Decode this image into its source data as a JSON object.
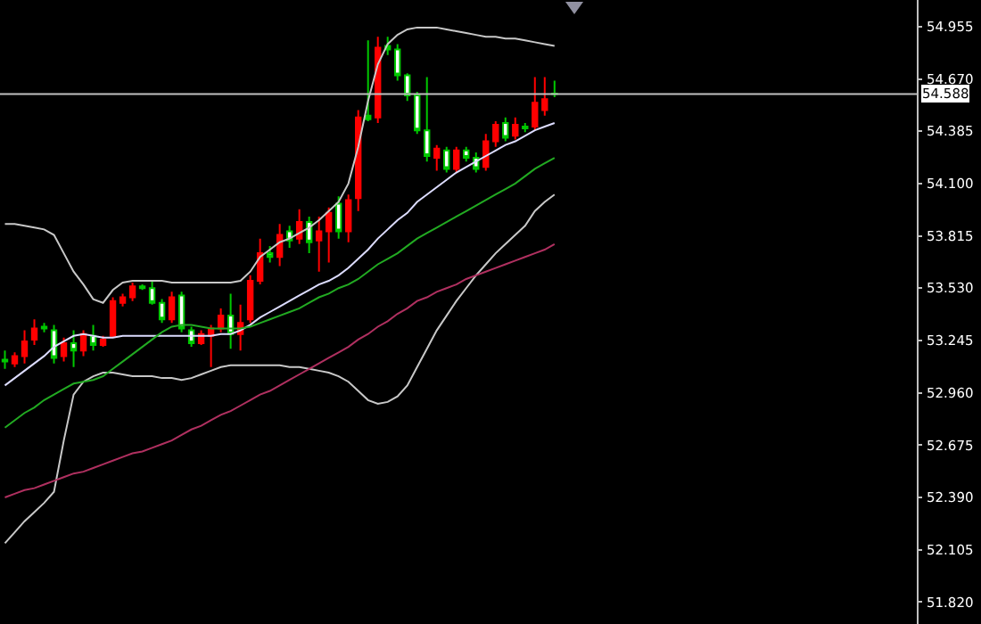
{
  "chart_data": {
    "type": "candlestick",
    "categories": [
      null,
      null,
      null,
      null,
      null,
      null,
      null,
      null,
      null,
      null,
      null,
      null,
      null,
      null,
      null,
      null,
      null,
      null,
      null,
      null,
      null,
      null,
      null,
      null,
      null,
      null,
      null,
      null,
      null,
      null,
      null,
      null,
      null,
      null,
      null,
      null,
      null,
      null,
      null,
      null,
      null,
      null,
      null,
      null,
      null,
      null,
      null,
      null,
      null,
      null,
      null,
      null,
      null,
      null,
      null,
      null,
      null
    ],
    "ohlc": [
      [
        53.14,
        53.19,
        53.09,
        53.13
      ],
      [
        53.12,
        53.18,
        53.1,
        53.16
      ],
      [
        53.16,
        53.3,
        53.12,
        53.24
      ],
      [
        53.25,
        53.36,
        53.22,
        53.31
      ],
      [
        53.32,
        53.34,
        53.29,
        53.31
      ],
      [
        53.3,
        53.33,
        53.12,
        53.15
      ],
      [
        53.16,
        53.26,
        53.13,
        53.23
      ],
      [
        53.23,
        53.3,
        53.1,
        53.19
      ],
      [
        53.19,
        53.3,
        53.16,
        53.28
      ],
      [
        53.27,
        53.33,
        53.19,
        53.22
      ],
      [
        53.22,
        53.27,
        53.21,
        53.25
      ],
      [
        53.27,
        53.48,
        53.26,
        53.46
      ],
      [
        53.45,
        53.5,
        53.43,
        53.48
      ],
      [
        53.48,
        53.56,
        53.46,
        53.54
      ],
      [
        53.54,
        53.55,
        53.52,
        53.53
      ],
      [
        53.53,
        53.57,
        53.44,
        53.45
      ],
      [
        53.45,
        53.47,
        53.34,
        53.36
      ],
      [
        53.36,
        53.51,
        53.34,
        53.48
      ],
      [
        53.49,
        53.51,
        53.29,
        53.31
      ],
      [
        53.3,
        53.32,
        53.21,
        53.23
      ],
      [
        53.23,
        53.3,
        53.22,
        53.28
      ],
      [
        53.27,
        53.33,
        53.1,
        53.31
      ],
      [
        53.31,
        53.42,
        53.29,
        53.38
      ],
      [
        53.38,
        53.5,
        53.2,
        53.28
      ],
      [
        53.28,
        53.44,
        53.19,
        53.34
      ],
      [
        53.36,
        53.6,
        53.34,
        53.57
      ],
      [
        53.57,
        53.8,
        53.55,
        53.72
      ],
      [
        53.72,
        53.76,
        53.67,
        53.7
      ],
      [
        53.7,
        53.88,
        53.65,
        53.82
      ],
      [
        53.84,
        53.87,
        53.75,
        53.79
      ],
      [
        53.8,
        53.96,
        53.77,
        53.89
      ],
      [
        53.89,
        53.92,
        53.72,
        53.78
      ],
      [
        53.79,
        53.92,
        53.62,
        53.84
      ],
      [
        53.84,
        53.97,
        53.67,
        53.94
      ],
      [
        53.99,
        54.03,
        53.8,
        53.84
      ],
      [
        53.84,
        54.04,
        53.78,
        54.01
      ],
      [
        54.02,
        54.5,
        53.95,
        54.46
      ],
      [
        54.47,
        54.88,
        54.44,
        54.45
      ],
      [
        54.46,
        54.9,
        54.43,
        54.84
      ],
      [
        54.85,
        54.9,
        54.8,
        54.83
      ],
      [
        54.83,
        54.86,
        54.66,
        54.69
      ],
      [
        54.69,
        54.7,
        54.55,
        54.58
      ],
      [
        54.58,
        54.6,
        54.37,
        54.39
      ],
      [
        54.39,
        54.68,
        54.22,
        54.25
      ],
      [
        54.24,
        54.31,
        54.17,
        54.29
      ],
      [
        54.28,
        54.3,
        54.16,
        54.18
      ],
      [
        54.18,
        54.3,
        54.16,
        54.28
      ],
      [
        54.28,
        54.3,
        54.22,
        54.24
      ],
      [
        54.24,
        54.27,
        54.16,
        54.18
      ],
      [
        54.19,
        54.37,
        54.17,
        54.33
      ],
      [
        54.33,
        54.44,
        54.3,
        54.42
      ],
      [
        54.43,
        54.46,
        54.33,
        54.35
      ],
      [
        54.36,
        54.46,
        54.34,
        54.42
      ],
      [
        54.41,
        54.43,
        54.38,
        54.4
      ],
      [
        54.41,
        54.68,
        54.39,
        54.54
      ],
      [
        54.5,
        54.68,
        54.47,
        54.56
      ],
      [
        54.59,
        54.66,
        54.57,
        54.588
      ]
    ],
    "series": [
      {
        "type": "line",
        "color": "#c8c8c8",
        "values": [
          53.88,
          53.88,
          53.87,
          53.86,
          53.85,
          53.82,
          53.72,
          53.62,
          53.55,
          53.47,
          53.45,
          53.52,
          53.56,
          53.57,
          53.57,
          53.57,
          53.57,
          53.56,
          53.56,
          53.56,
          53.56,
          53.56,
          53.56,
          53.56,
          53.57,
          53.62,
          53.7,
          53.74,
          53.78,
          53.8,
          53.83,
          53.86,
          53.9,
          53.95,
          54.0,
          54.1,
          54.3,
          54.55,
          54.75,
          54.86,
          54.91,
          54.94,
          54.95,
          54.95,
          54.95,
          54.94,
          54.93,
          54.92,
          54.91,
          54.9,
          54.9,
          54.89,
          54.89,
          54.88,
          54.87,
          54.86,
          54.85
        ]
      },
      {
        "type": "line",
        "color": "#c8c8c8",
        "values": [
          52.14,
          52.2,
          52.26,
          52.31,
          52.36,
          52.42,
          52.7,
          52.95,
          53.02,
          53.05,
          53.07,
          53.07,
          53.06,
          53.05,
          53.05,
          53.05,
          53.04,
          53.04,
          53.03,
          53.04,
          53.06,
          53.08,
          53.1,
          53.11,
          53.11,
          53.11,
          53.11,
          53.11,
          53.11,
          53.1,
          53.1,
          53.09,
          53.08,
          53.07,
          53.05,
          53.02,
          52.97,
          52.92,
          52.9,
          52.91,
          52.94,
          53.0,
          53.1,
          53.2,
          53.3,
          53.38,
          53.46,
          53.53,
          53.6,
          53.66,
          53.72,
          53.77,
          53.82,
          53.87,
          53.95,
          54.0,
          54.04
        ]
      },
      {
        "type": "line",
        "color": "#dcdcff",
        "values": [
          53.0,
          53.04,
          53.08,
          53.12,
          53.16,
          53.21,
          53.24,
          53.27,
          53.28,
          53.27,
          53.26,
          53.26,
          53.27,
          53.27,
          53.27,
          53.27,
          53.27,
          53.27,
          53.27,
          53.27,
          53.27,
          53.27,
          53.28,
          53.28,
          53.3,
          53.33,
          53.37,
          53.4,
          53.43,
          53.46,
          53.49,
          53.52,
          53.55,
          53.57,
          53.6,
          53.64,
          53.69,
          53.74,
          53.8,
          53.85,
          53.9,
          53.94,
          54.0,
          54.04,
          54.08,
          54.12,
          54.16,
          54.19,
          54.22,
          54.25,
          54.28,
          54.31,
          54.33,
          54.36,
          54.39,
          54.41,
          54.43
        ]
      },
      {
        "type": "line",
        "color": "#22aa22",
        "values": [
          52.77,
          52.81,
          52.85,
          52.88,
          52.92,
          52.95,
          52.98,
          53.01,
          53.02,
          53.03,
          53.05,
          53.09,
          53.13,
          53.17,
          53.21,
          53.25,
          53.29,
          53.32,
          53.33,
          53.33,
          53.32,
          53.31,
          53.31,
          53.31,
          53.31,
          53.32,
          53.34,
          53.36,
          53.38,
          53.4,
          53.42,
          53.45,
          53.48,
          53.5,
          53.53,
          53.55,
          53.58,
          53.62,
          53.66,
          53.69,
          53.72,
          53.76,
          53.8,
          53.83,
          53.86,
          53.89,
          53.92,
          53.95,
          53.98,
          54.01,
          54.04,
          54.07,
          54.1,
          54.14,
          54.18,
          54.21,
          54.24
        ]
      },
      {
        "type": "line",
        "color": "#b03060",
        "values": [
          52.39,
          52.41,
          52.43,
          52.44,
          52.46,
          52.48,
          52.5,
          52.52,
          52.53,
          52.55,
          52.57,
          52.59,
          52.61,
          52.63,
          52.64,
          52.66,
          52.68,
          52.7,
          52.73,
          52.76,
          52.78,
          52.81,
          52.84,
          52.86,
          52.89,
          52.92,
          52.95,
          52.97,
          53.0,
          53.03,
          53.06,
          53.09,
          53.12,
          53.15,
          53.18,
          53.21,
          53.25,
          53.28,
          53.32,
          53.35,
          53.39,
          53.42,
          53.46,
          53.48,
          53.51,
          53.53,
          53.55,
          53.58,
          53.6,
          53.62,
          53.64,
          53.66,
          53.68,
          53.7,
          53.72,
          53.74,
          53.77
        ]
      }
    ],
    "ylim": [
      51.7,
      55.1
    ],
    "yticks": [
      {
        "value": 51.82,
        "label": "51.820"
      },
      {
        "value": 52.105,
        "label": "52.105"
      },
      {
        "value": 52.39,
        "label": "52.390"
      },
      {
        "value": 52.675,
        "label": "52.675"
      },
      {
        "value": 52.96,
        "label": "52.960"
      },
      {
        "value": 53.245,
        "label": "53.245"
      },
      {
        "value": 53.53,
        "label": "53.530"
      },
      {
        "value": 53.815,
        "label": "53.815"
      },
      {
        "value": 54.1,
        "label": "54.100"
      },
      {
        "value": 54.385,
        "label": "54.385"
      },
      {
        "value": 54.67,
        "label": "54.670"
      },
      {
        "value": 54.955,
        "label": "54.955"
      }
    ],
    "ref_lines": [
      {
        "axis": "y",
        "value": 54.588,
        "label": "54.588",
        "color": "#c0c0c0"
      }
    ],
    "tick_labels": "y",
    "grid": false
  }
}
